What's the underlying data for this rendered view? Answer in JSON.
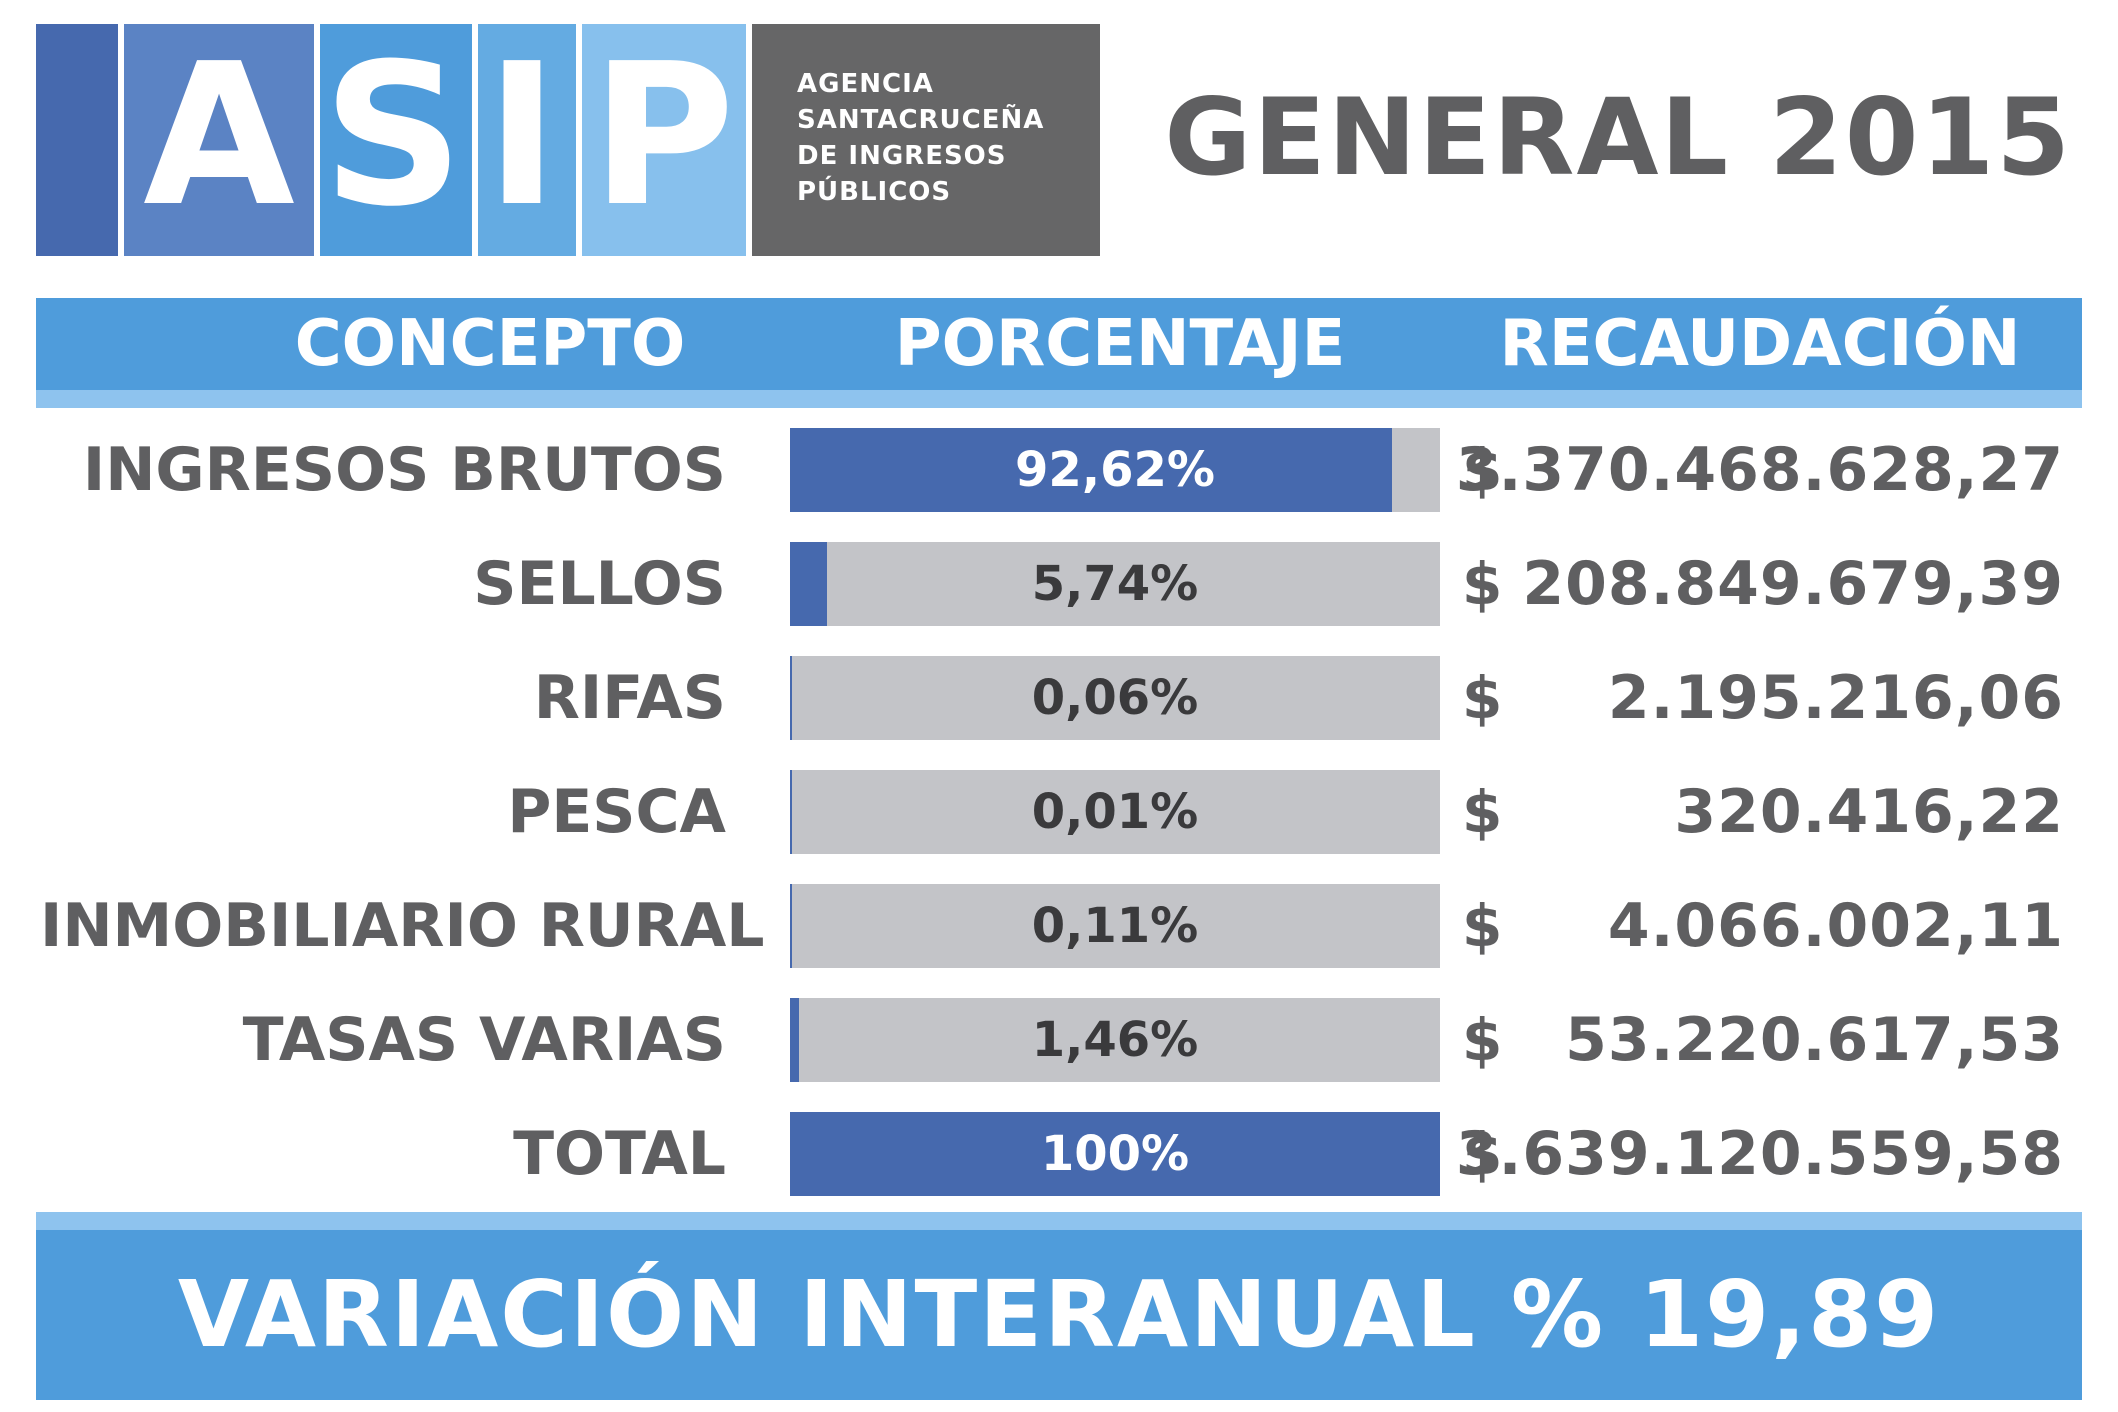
{
  "logo": {
    "letters": [
      "A",
      "S",
      "I",
      "P"
    ],
    "agency_lines": [
      "AGENCIA",
      "SANTACRUCEÑA",
      "DE INGRESOS",
      "PÚBLICOS"
    ]
  },
  "title": "GENERAL 2015",
  "headers": {
    "concepto": "CONCEPTO",
    "porcentaje": "PORCENTAJE",
    "recaudacion": "RECAUDACIÓN"
  },
  "currency_symbol": "$",
  "chart_data": {
    "type": "bar",
    "categories": [
      "INGRESOS BRUTOS",
      "SELLOS",
      "RIFAS",
      "PESCA",
      "INMOBILIARIO RURAL",
      "TASAS VARIAS",
      "TOTAL"
    ],
    "values": [
      92.62,
      5.74,
      0.06,
      0.01,
      0.11,
      1.46,
      100
    ],
    "value_labels": [
      "92,62%",
      "5,74%",
      "0,06%",
      "0,01%",
      "0,11%",
      "1,46%",
      "100%"
    ],
    "amounts": [
      "3.370.468.628,27",
      "208.849.679,39",
      "2.195.216,06",
      "320.416,22",
      "4.066.002,11",
      "53.220.617,53",
      "3.639.120.559,58"
    ],
    "xlim": [
      0,
      100
    ]
  },
  "colors": {
    "bar_fill": "#4669ae",
    "bar_track": "#c3c4c8",
    "band": "#4f9cdb",
    "band_light": "#8ec3ee",
    "text_gray": "#5f5f61"
  },
  "footer": {
    "text": "VARIACIÓN INTERANUAL % 19,89"
  }
}
